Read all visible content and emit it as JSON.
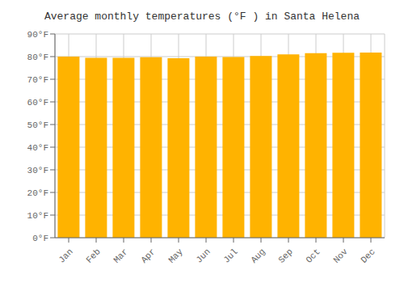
{
  "chart_data": {
    "type": "bar",
    "title": "Average monthly temperatures (°F ) in Santa Helena",
    "categories": [
      "Jan",
      "Feb",
      "Mar",
      "Apr",
      "May",
      "Jun",
      "Jul",
      "Aug",
      "Sep",
      "Oct",
      "Nov",
      "Dec"
    ],
    "values": [
      80.0,
      79.5,
      79.5,
      79.7,
      79.3,
      80.0,
      79.8,
      80.3,
      81.0,
      81.5,
      81.7,
      81.8
    ],
    "color": "#FFB300",
    "ylim": [
      0,
      90
    ],
    "yticks": [
      {
        "value": 0,
        "label": "0°F"
      },
      {
        "value": 10,
        "label": "10°F"
      },
      {
        "value": 20,
        "label": "20°F"
      },
      {
        "value": 30,
        "label": "30°F"
      },
      {
        "value": 40,
        "label": "40°F"
      },
      {
        "value": 50,
        "label": "50°F"
      },
      {
        "value": 60,
        "label": "60°F"
      },
      {
        "value": 70,
        "label": "70°F"
      },
      {
        "value": 80,
        "label": "80°F"
      },
      {
        "value": 90,
        "label": "90°F"
      }
    ],
    "grid": true
  }
}
